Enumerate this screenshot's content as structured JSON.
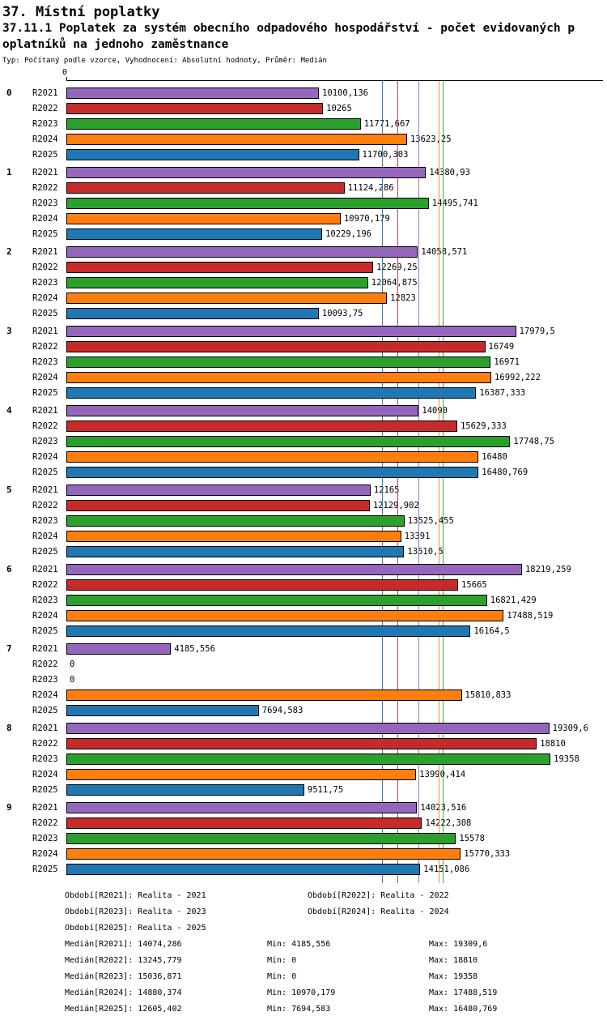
{
  "header": {
    "title": "37. Místní poplatky",
    "subtitle_line1": "37.11.1 Poplatek za systém obecního odpadového hospodářství - počet evidovaných p",
    "subtitle_line2": "oplatníků na jednoho zaměstnance",
    "meta": "Typ: Počítaný podle vzorce, Vyhodnocení: Absolutní hodnoty, Průměr: Medián"
  },
  "chart_data": {
    "type": "bar",
    "orientation": "horizontal",
    "axis_zero_label": "0",
    "xlim": [
      0,
      21000
    ],
    "grid": false,
    "legend_position": "bottom",
    "series": [
      "R2021",
      "R2022",
      "R2023",
      "R2024",
      "R2025"
    ],
    "colors": {
      "R2021": "#9467bd",
      "R2022": "#c62b2b",
      "R2023": "#2ca02c",
      "R2024": "#ff7f0e",
      "R2025": "#1f77b4"
    },
    "groups": [
      {
        "label": "0",
        "values": [
          10100.136,
          10265,
          11771.667,
          13623.25,
          11700.303
        ],
        "value_labels": [
          "10100,136",
          "10265",
          "11771,667",
          "13623,25",
          "11700,303"
        ]
      },
      {
        "label": "1",
        "values": [
          14380.93,
          11124.286,
          14495.741,
          10970.179,
          10229.196
        ],
        "value_labels": [
          "14380,93",
          "11124,286",
          "14495,741",
          "10970,179",
          "10229,196"
        ]
      },
      {
        "label": "2",
        "values": [
          14058.571,
          12269.25,
          12064.875,
          12823,
          10093.75
        ],
        "value_labels": [
          "14058,571",
          "12269,25",
          "12064,875",
          "12823",
          "10093,75"
        ]
      },
      {
        "label": "3",
        "values": [
          17979.5,
          16749,
          16971,
          16992.222,
          16387.333
        ],
        "value_labels": [
          "17979,5",
          "16749",
          "16971",
          "16992,222",
          "16387,333"
        ]
      },
      {
        "label": "4",
        "values": [
          14090,
          15629.333,
          17748.75,
          16480,
          16480.769
        ],
        "value_labels": [
          "14090",
          "15629,333",
          "17748,75",
          "16480",
          "16480,769"
        ]
      },
      {
        "label": "5",
        "values": [
          12165,
          12129.902,
          13525.455,
          13391,
          13510.5
        ],
        "value_labels": [
          "12165",
          "12129,902",
          "13525,455",
          "13391",
          "13510,5"
        ]
      },
      {
        "label": "6",
        "values": [
          18219.259,
          15665,
          16821.429,
          17488.519,
          16164.5
        ],
        "value_labels": [
          "18219,259",
          "15665",
          "16821,429",
          "17488,519",
          "16164,5"
        ]
      },
      {
        "label": "7",
        "values": [
          4185.556,
          0,
          0,
          15810.833,
          7694.583
        ],
        "value_labels": [
          "4185,556",
          "0",
          "0",
          "15810,833",
          "7694,583"
        ]
      },
      {
        "label": "8",
        "values": [
          19309.6,
          18810,
          19358,
          13990.414,
          9511.75
        ],
        "value_labels": [
          "19309,6",
          "18810",
          "19358",
          "13990,414",
          "9511,75"
        ]
      },
      {
        "label": "9",
        "values": [
          14023.516,
          14222.308,
          15578,
          15770.333,
          14151.086
        ],
        "value_labels": [
          "14023,516",
          "14222,308",
          "15578",
          "15770,333",
          "14151,086"
        ]
      }
    ],
    "medians": {
      "R2021": 14074.286,
      "R2022": 13245.779,
      "R2023": 15036.871,
      "R2024": 14880.374,
      "R2025": 12605.402
    }
  },
  "legend": {
    "periods": [
      "Období[R2021]: Realita - 2021",
      "Období[R2022]: Realita - 2022",
      "Období[R2023]: Realita - 2023",
      "Období[R2024]: Realita - 2024",
      "Období[R2025]: Realita - 2025"
    ],
    "stats": [
      {
        "median": "Medián[R2021]: 14074,286",
        "min": "Min: 4185,556",
        "max": "Max: 19309,6"
      },
      {
        "median": "Medián[R2022]: 13245,779",
        "min": "Min: 0",
        "max": "Max: 18810"
      },
      {
        "median": "Medián[R2023]: 15036,871",
        "min": "Min: 0",
        "max": "Max: 19358"
      },
      {
        "median": "Medián[R2024]: 14880,374",
        "min": "Min: 10970,179",
        "max": "Max: 17488,519"
      },
      {
        "median": "Medián[R2025]: 12605,402",
        "min": "Min: 7694,583",
        "max": "Max: 16480,769"
      }
    ]
  }
}
